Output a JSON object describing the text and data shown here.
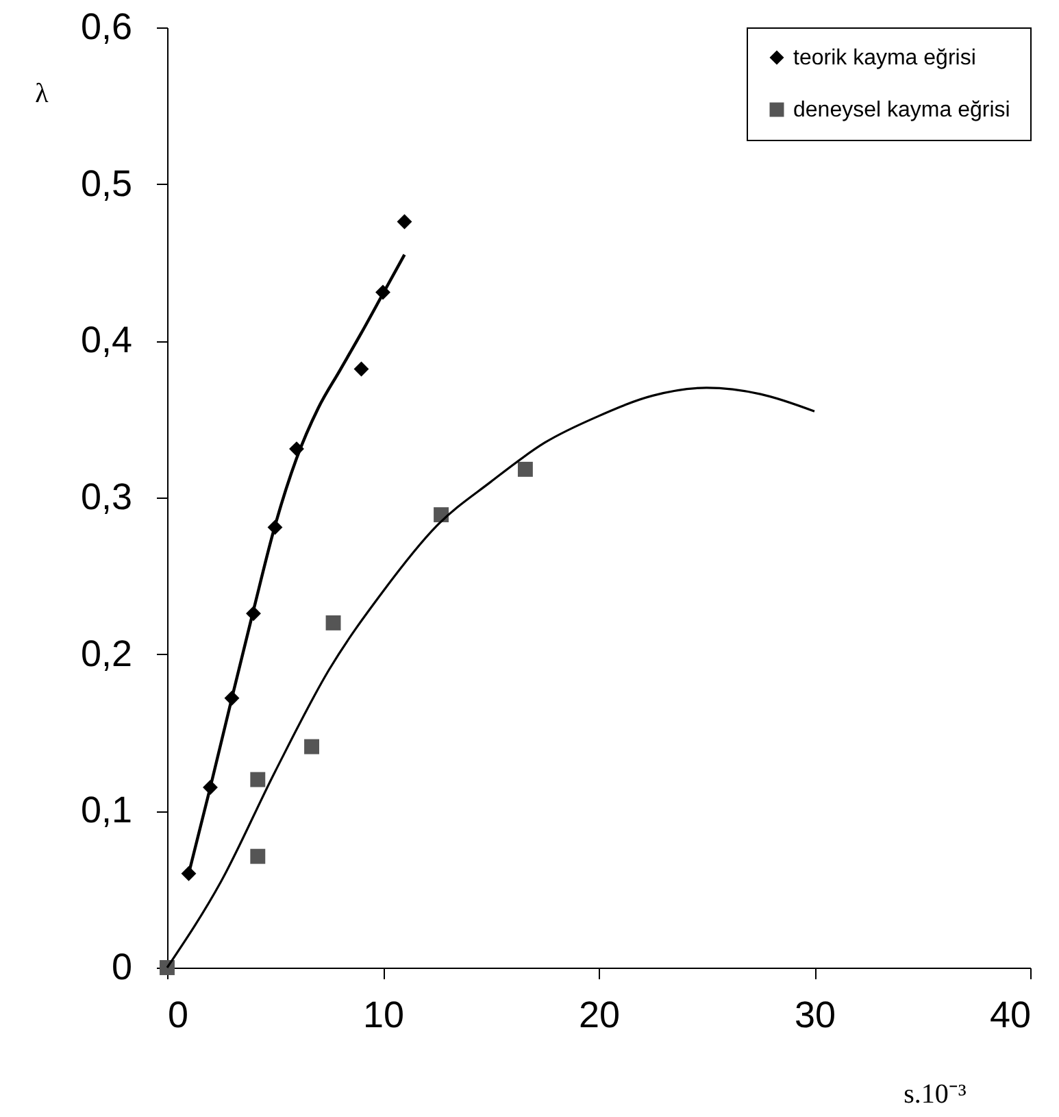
{
  "chart_data": {
    "type": "scatter",
    "xlabel": "s.10⁻³",
    "ylabel": "λ",
    "xlim": [
      0,
      40
    ],
    "ylim": [
      0,
      0.6
    ],
    "xticks": [
      0,
      10,
      20,
      30,
      40
    ],
    "yticks": [
      0,
      {
        "value": 0.1,
        "label": "0,1"
      },
      {
        "value": 0.2,
        "label": "0,2"
      },
      {
        "value": 0.3,
        "label": "0,3"
      },
      {
        "value": 0.4,
        "label": "0,4"
      },
      {
        "value": 0.5,
        "label": "0,5"
      },
      {
        "value": 0.6,
        "label": "0,6"
      }
    ],
    "grid": false,
    "legend": "top right",
    "series": [
      {
        "name": "teorik kayma eğrisi",
        "marker": "diamond",
        "color": "#000000",
        "x": [
          1,
          2,
          3,
          4,
          5,
          6,
          9,
          10,
          11
        ],
        "values": [
          0.06,
          0.115,
          0.172,
          0.226,
          0.281,
          0.331,
          0.382,
          0.431,
          0.476
        ]
      },
      {
        "name": "deneysel kayma eğrisi",
        "marker": "square",
        "color": "#555555",
        "x": [
          0,
          4.2,
          4.2,
          6.7,
          7.7,
          12.7,
          16.6
        ],
        "values": [
          0,
          0.12,
          0.071,
          0.141,
          0.22,
          0.289,
          0.318
        ]
      },
      {
        "type": "line",
        "marker": "none",
        "color": "#000000",
        "x": [
          1,
          2,
          3,
          4,
          5,
          6,
          7,
          8,
          9,
          10,
          11
        ],
        "values": [
          0.06,
          0.115,
          0.172,
          0.228,
          0.282,
          0.325,
          0.357,
          0.381,
          0.405,
          0.43,
          0.455
        ]
      },
      {
        "type": "line",
        "marker": "none",
        "color": "#000000",
        "x": [
          0,
          2.5,
          5,
          7.5,
          10,
          12.5,
          15,
          17.5,
          20,
          22.5,
          25,
          27.5,
          30
        ],
        "values": [
          0,
          0.055,
          0.125,
          0.19,
          0.24,
          0.282,
          0.31,
          0.335,
          0.352,
          0.365,
          0.37,
          0.366,
          0.355
        ]
      }
    ]
  }
}
